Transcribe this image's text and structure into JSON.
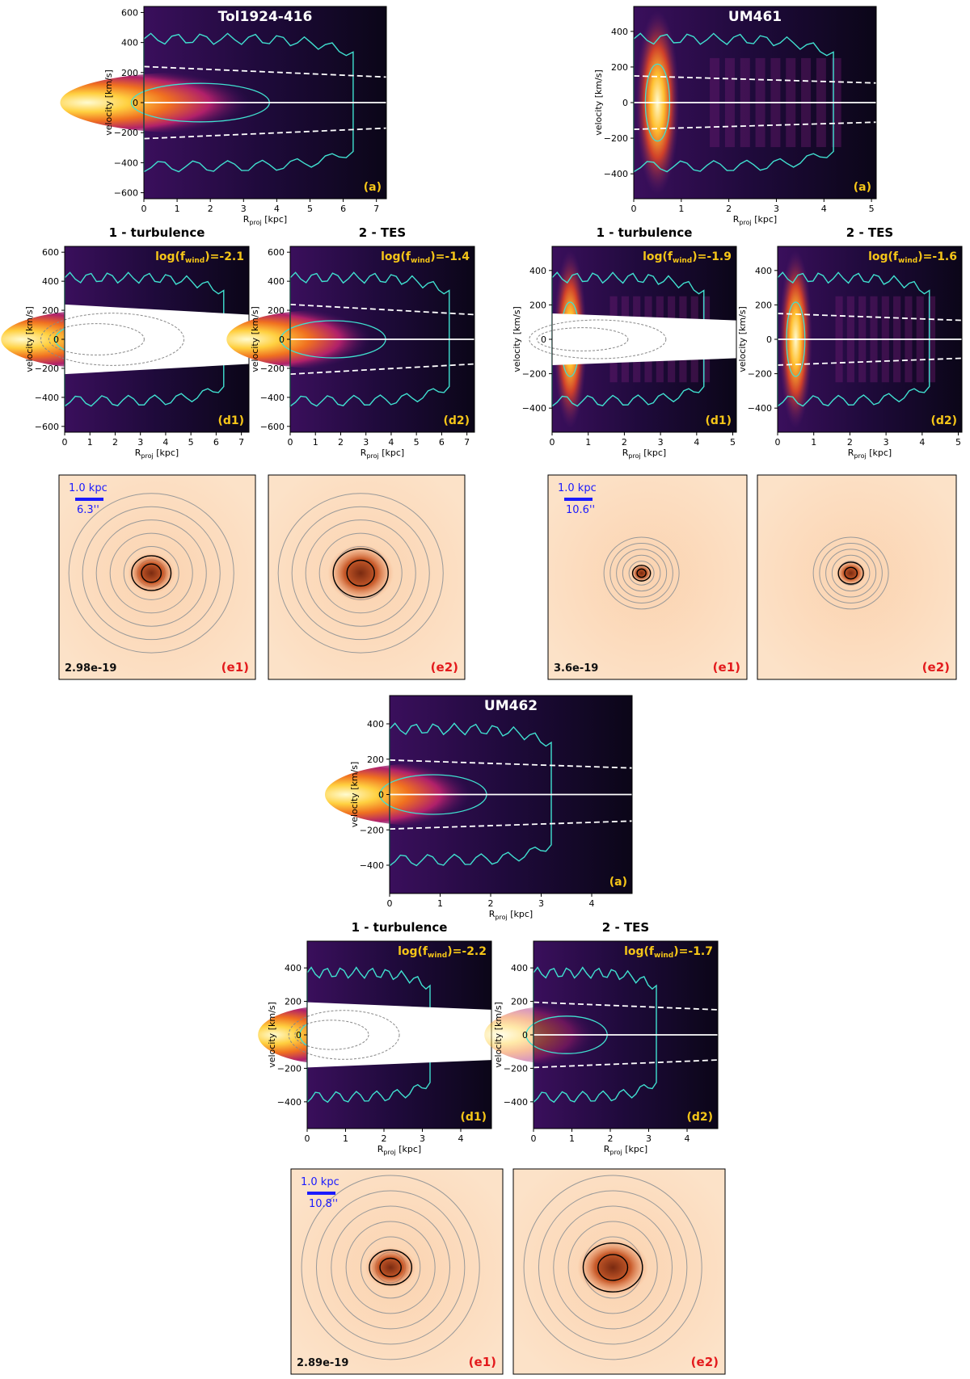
{
  "colors": {
    "cyan": "#40e0d0",
    "scale": "#1a1aff",
    "elabel": "#e31a1c",
    "plabel": "#f5c518"
  },
  "axes": {
    "ylabel": "velocity [km/s]",
    "xlabel_main": "R",
    "xlabel_sub": "proj",
    "xlabel_unit": " [kpc]"
  },
  "titles": {
    "turb": "1 - turbulence",
    "tes": "2 - TES"
  },
  "panel_labels": {
    "a": "(a)",
    "d1": "(d1)",
    "d2": "(d2)",
    "e1": "(e1)",
    "e2": "(e2)"
  },
  "wind_prefix": "log(f",
  "wind_sub": "wind",
  "galaxies": [
    {
      "name": "Tol1924-416",
      "xlim": [
        0,
        7.3
      ],
      "xticks": [
        0,
        1,
        2,
        3,
        4,
        5,
        6,
        7
      ],
      "ylim_a": [
        -640,
        640
      ],
      "yticks_a": [
        -600,
        -400,
        -200,
        0,
        200,
        400,
        600
      ],
      "ylim_d": [
        -640,
        640
      ],
      "yticks_d": [
        -600,
        -400,
        -200,
        0,
        200,
        400,
        600
      ],
      "wind_d1": ")=-2.1",
      "wind_d2": ")=-1.4",
      "flux": "2.98e-19",
      "scale_kpc": "1.0 kpc",
      "scale_arcsec": "6.3''"
    },
    {
      "name": "UM461",
      "xlim": [
        0,
        5.1
      ],
      "xticks": [
        0,
        1,
        2,
        3,
        4,
        5
      ],
      "ylim_a": [
        -540,
        540
      ],
      "yticks_a": [
        -400,
        -200,
        0,
        200,
        400
      ],
      "ylim_d": [
        -540,
        540
      ],
      "yticks_d": [
        -400,
        -200,
        0,
        200,
        400
      ],
      "wind_d1": ")=-1.9",
      "wind_d2": ")=-1.6",
      "flux": "3.6e-19",
      "scale_kpc": "1.0 kpc",
      "scale_arcsec": "10.6''"
    },
    {
      "name": "UM462",
      "xlim": [
        0,
        4.8
      ],
      "xticks": [
        0,
        1,
        2,
        3,
        4
      ],
      "ylim_a": [
        -560,
        560
      ],
      "yticks_a": [
        -400,
        -200,
        0,
        200,
        400
      ],
      "ylim_d": [
        -560,
        560
      ],
      "yticks_d": [
        -400,
        -200,
        0,
        200,
        400
      ],
      "wind_d1": ")=-2.2",
      "wind_d2": ")=-1.7",
      "flux": "2.89e-19",
      "scale_kpc": "1.0 kpc",
      "scale_arcsec": "10.8''"
    }
  ],
  "chart_data": [
    {
      "type": "heatmap",
      "panel": "Tol1924-416 (a)",
      "xlabel": "Rproj [kpc]",
      "ylabel": "velocity [km/s]",
      "xlim": [
        0,
        7.3
      ],
      "ylim": [
        -640,
        640
      ],
      "escape_velocity_kms": {
        "R": [
          0,
          7.3
        ],
        "v": [
          240,
          170
        ]
      },
      "emission_extent_kpc": 6.3
    },
    {
      "type": "heatmap",
      "panel": "UM461 (a)",
      "xlabel": "Rproj [kpc]",
      "ylabel": "velocity [km/s]",
      "xlim": [
        0,
        5.1
      ],
      "ylim": [
        -540,
        540
      ],
      "escape_velocity_kms": {
        "R": [
          0,
          5.1
        ],
        "v": [
          150,
          110
        ]
      },
      "emission_extent_kpc": 4.2
    },
    {
      "type": "heatmap",
      "panel": "UM462 (a)",
      "xlabel": "Rproj [kpc]",
      "ylabel": "velocity [km/s]",
      "xlim": [
        0,
        4.8
      ],
      "ylim": [
        -560,
        560
      ],
      "escape_velocity_kms": {
        "R": [
          0,
          4.8
        ],
        "v": [
          195,
          150
        ]
      },
      "emission_extent_kpc": 3.2
    }
  ]
}
